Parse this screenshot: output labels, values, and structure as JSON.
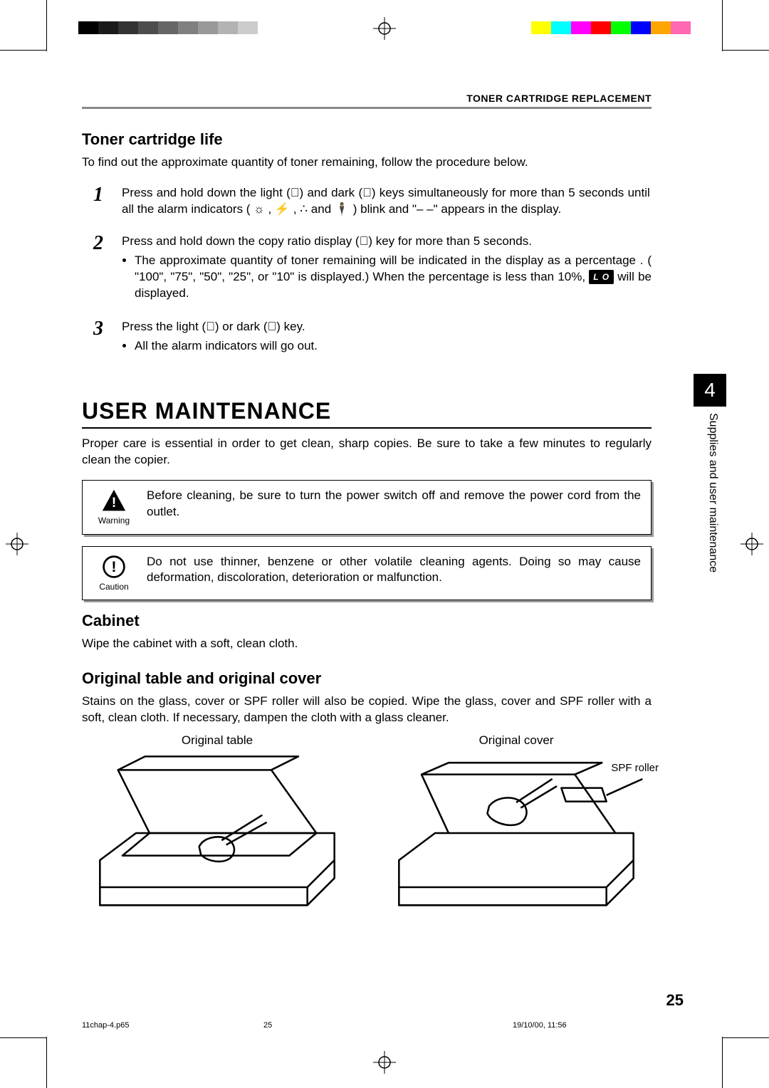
{
  "calibration": {
    "grayscale": [
      "#000000",
      "#1a1a1a",
      "#333333",
      "#4d4d4d",
      "#666666",
      "#808080",
      "#999999",
      "#b3b3b3",
      "#cccccc",
      "#ffffff"
    ],
    "colors": [
      "#ffff00",
      "#00ffff",
      "#ff00ff",
      "#ff0000",
      "#00ff00",
      "#0000ff",
      "#ffa500",
      "#ff69b4"
    ]
  },
  "header": {
    "running_head": "TONER CARTRIDGE REPLACEMENT"
  },
  "sidetab": {
    "chapter_number": "4",
    "label": "Supplies and user maintenance"
  },
  "toner_life": {
    "heading": "Toner cartridge life",
    "intro": "To find out the approximate quantity of toner remaining, follow the procedure below.",
    "steps": [
      {
        "n": "1",
        "html": "Press and hold down the light (⃝) and dark (⃝) keys simultaneously for more than 5 seconds until all the alarm indicators ( ☼ , ⚡ , ∴ and 🕴 ) blink and \"– –\" appears in the display."
      },
      {
        "n": "2",
        "line": "Press and hold down the copy ratio display (⃝) key for more than 5 seconds.",
        "bullet": "The approximate quantity of toner remaining will be indicated in the display as a percentage . ( \"100\", \"75\", \"50\", \"25\", or \"10\"  is displayed.) When the percentage is less than 10%,  ",
        "lo_badge": "L O",
        "bullet_tail": "  will be displayed."
      },
      {
        "n": "3",
        "line": "Press the light (⃝) or dark (⃝) key.",
        "bullet": "All the alarm indicators will go out."
      }
    ]
  },
  "user_maint": {
    "heading": "USER MAINTENANCE",
    "intro": "Proper care is essential in order to get clean, sharp copies. Be sure to take a few minutes to regularly clean the copier.",
    "warning": {
      "label": "Warning",
      "text": "Before cleaning, be sure to turn the power switch off and remove the power cord from the outlet."
    },
    "caution": {
      "label": "Caution",
      "text": "Do not use thinner, benzene or other volatile cleaning agents. Doing so may cause deformation, discoloration, deterioration or malfunction."
    },
    "cabinet": {
      "heading": "Cabinet",
      "text": "Wipe the cabinet with a soft, clean cloth."
    },
    "original": {
      "heading": "Original table and original cover",
      "text": "Stains on the glass, cover or SPF roller will also be copied. Wipe the glass, cover and SPF roller with a soft, clean cloth. If necessary, dampen the cloth with a glass cleaner.",
      "fig1_caption": "Original table",
      "fig2_caption": "Original cover",
      "spf_label": "SPF roller"
    }
  },
  "footer": {
    "page_number": "25",
    "file": "11chap-4.p65",
    "page": "25",
    "datetime": "19/10/00, 11:56"
  }
}
